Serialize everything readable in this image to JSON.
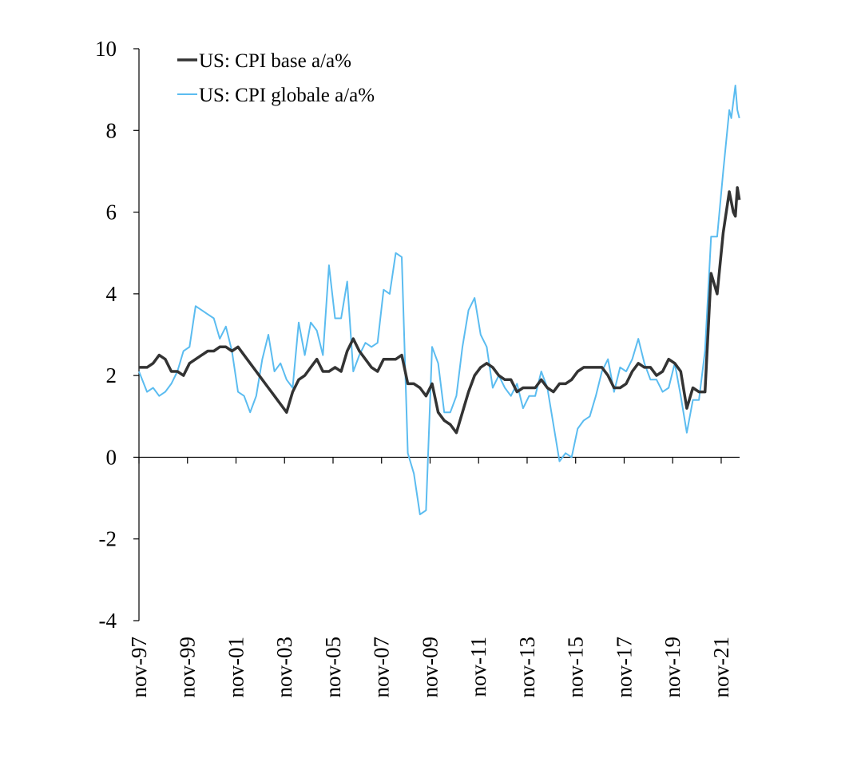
{
  "chart_data": {
    "type": "line",
    "title": "",
    "xlabel": "",
    "ylabel": "",
    "ylim": [
      -4,
      10
    ],
    "y_ticks": [
      "10",
      "8",
      "6",
      "4",
      "2",
      "0",
      "-2",
      "-4"
    ],
    "x_tick_labels": [
      "nov-97",
      "nov-99",
      "nov-01",
      "nov-03",
      "nov-05",
      "nov-07",
      "nov-09",
      "nov-11",
      "nov-13",
      "nov-15",
      "nov-17",
      "nov-19",
      "nov-21"
    ],
    "x_range": [
      "1997-11",
      "2022-07"
    ],
    "grid": false,
    "legend_position": "top-left",
    "series": [
      {
        "name": "US: CPI base a/a%",
        "color": "#333333",
        "points": [
          [
            "1997-11",
            2.2
          ],
          [
            "1998-03",
            2.2
          ],
          [
            "1998-06",
            2.3
          ],
          [
            "1998-09",
            2.5
          ],
          [
            "1998-12",
            2.4
          ],
          [
            "1999-03",
            2.1
          ],
          [
            "1999-06",
            2.1
          ],
          [
            "1999-09",
            2.0
          ],
          [
            "1999-12",
            2.3
          ],
          [
            "2000-03",
            2.4
          ],
          [
            "2000-06",
            2.5
          ],
          [
            "2000-09",
            2.6
          ],
          [
            "2000-12",
            2.6
          ],
          [
            "2001-03",
            2.7
          ],
          [
            "2001-06",
            2.7
          ],
          [
            "2001-09",
            2.6
          ],
          [
            "2001-12",
            2.7
          ],
          [
            "2002-03",
            2.5
          ],
          [
            "2002-06",
            2.3
          ],
          [
            "2002-09",
            2.1
          ],
          [
            "2002-12",
            1.9
          ],
          [
            "2003-03",
            1.7
          ],
          [
            "2003-06",
            1.5
          ],
          [
            "2003-09",
            1.3
          ],
          [
            "2003-12",
            1.1
          ],
          [
            "2004-03",
            1.6
          ],
          [
            "2004-06",
            1.9
          ],
          [
            "2004-09",
            2.0
          ],
          [
            "2004-12",
            2.2
          ],
          [
            "2005-03",
            2.4
          ],
          [
            "2005-06",
            2.1
          ],
          [
            "2005-09",
            2.1
          ],
          [
            "2005-12",
            2.2
          ],
          [
            "2006-03",
            2.1
          ],
          [
            "2006-06",
            2.6
          ],
          [
            "2006-09",
            2.9
          ],
          [
            "2006-12",
            2.6
          ],
          [
            "2007-03",
            2.4
          ],
          [
            "2007-06",
            2.2
          ],
          [
            "2007-09",
            2.1
          ],
          [
            "2007-12",
            2.4
          ],
          [
            "2008-03",
            2.4
          ],
          [
            "2008-06",
            2.4
          ],
          [
            "2008-09",
            2.5
          ],
          [
            "2008-12",
            1.8
          ],
          [
            "2009-03",
            1.8
          ],
          [
            "2009-06",
            1.7
          ],
          [
            "2009-09",
            1.5
          ],
          [
            "2009-12",
            1.8
          ],
          [
            "2010-03",
            1.1
          ],
          [
            "2010-06",
            0.9
          ],
          [
            "2010-09",
            0.8
          ],
          [
            "2010-12",
            0.6
          ],
          [
            "2011-03",
            1.1
          ],
          [
            "2011-06",
            1.6
          ],
          [
            "2011-09",
            2.0
          ],
          [
            "2011-12",
            2.2
          ],
          [
            "2012-03",
            2.3
          ],
          [
            "2012-06",
            2.2
          ],
          [
            "2012-09",
            2.0
          ],
          [
            "2012-12",
            1.9
          ],
          [
            "2013-03",
            1.9
          ],
          [
            "2013-06",
            1.6
          ],
          [
            "2013-09",
            1.7
          ],
          [
            "2013-12",
            1.7
          ],
          [
            "2014-03",
            1.7
          ],
          [
            "2014-06",
            1.9
          ],
          [
            "2014-09",
            1.7
          ],
          [
            "2014-12",
            1.6
          ],
          [
            "2015-03",
            1.8
          ],
          [
            "2015-06",
            1.8
          ],
          [
            "2015-09",
            1.9
          ],
          [
            "2015-12",
            2.1
          ],
          [
            "2016-03",
            2.2
          ],
          [
            "2016-06",
            2.2
          ],
          [
            "2016-09",
            2.2
          ],
          [
            "2016-12",
            2.2
          ],
          [
            "2017-03",
            2.0
          ],
          [
            "2017-06",
            1.7
          ],
          [
            "2017-09",
            1.7
          ],
          [
            "2017-12",
            1.8
          ],
          [
            "2018-03",
            2.1
          ],
          [
            "2018-06",
            2.3
          ],
          [
            "2018-09",
            2.2
          ],
          [
            "2018-12",
            2.2
          ],
          [
            "2019-03",
            2.0
          ],
          [
            "2019-06",
            2.1
          ],
          [
            "2019-09",
            2.4
          ],
          [
            "2019-12",
            2.3
          ],
          [
            "2020-03",
            2.1
          ],
          [
            "2020-06",
            1.2
          ],
          [
            "2020-09",
            1.7
          ],
          [
            "2020-12",
            1.6
          ],
          [
            "2021-03",
            1.6
          ],
          [
            "2021-06",
            4.5
          ],
          [
            "2021-09",
            4.0
          ],
          [
            "2021-12",
            5.5
          ],
          [
            "2022-03",
            6.5
          ],
          [
            "2022-05",
            6.0
          ],
          [
            "2022-06",
            5.9
          ],
          [
            "2022-07",
            6.6
          ],
          [
            "2022-08",
            6.3
          ]
        ]
      },
      {
        "name": "US: CPI globale a/a%",
        "color": "#5bbcf0",
        "points": [
          [
            "1997-11",
            2.1
          ],
          [
            "1998-03",
            1.6
          ],
          [
            "1998-06",
            1.7
          ],
          [
            "1998-09",
            1.5
          ],
          [
            "1998-12",
            1.6
          ],
          [
            "1999-03",
            1.8
          ],
          [
            "1999-06",
            2.1
          ],
          [
            "1999-09",
            2.6
          ],
          [
            "1999-12",
            2.7
          ],
          [
            "2000-03",
            3.7
          ],
          [
            "2000-06",
            3.6
          ],
          [
            "2000-09",
            3.5
          ],
          [
            "2000-12",
            3.4
          ],
          [
            "2001-03",
            2.9
          ],
          [
            "2001-06",
            3.2
          ],
          [
            "2001-09",
            2.6
          ],
          [
            "2001-12",
            1.6
          ],
          [
            "2002-03",
            1.5
          ],
          [
            "2002-06",
            1.1
          ],
          [
            "2002-09",
            1.5
          ],
          [
            "2002-12",
            2.4
          ],
          [
            "2003-03",
            3.0
          ],
          [
            "2003-06",
            2.1
          ],
          [
            "2003-09",
            2.3
          ],
          [
            "2003-12",
            1.9
          ],
          [
            "2004-03",
            1.7
          ],
          [
            "2004-06",
            3.3
          ],
          [
            "2004-09",
            2.5
          ],
          [
            "2004-12",
            3.3
          ],
          [
            "2005-03",
            3.1
          ],
          [
            "2005-06",
            2.5
          ],
          [
            "2005-09",
            4.7
          ],
          [
            "2005-12",
            3.4
          ],
          [
            "2006-03",
            3.4
          ],
          [
            "2006-06",
            4.3
          ],
          [
            "2006-09",
            2.1
          ],
          [
            "2006-12",
            2.5
          ],
          [
            "2007-03",
            2.8
          ],
          [
            "2007-06",
            2.7
          ],
          [
            "2007-09",
            2.8
          ],
          [
            "2007-12",
            4.1
          ],
          [
            "2008-03",
            4.0
          ],
          [
            "2008-06",
            5.0
          ],
          [
            "2008-09",
            4.9
          ],
          [
            "2008-12",
            0.1
          ],
          [
            "2009-03",
            -0.4
          ],
          [
            "2009-06",
            -1.4
          ],
          [
            "2009-09",
            -1.3
          ],
          [
            "2009-12",
            2.7
          ],
          [
            "2010-03",
            2.3
          ],
          [
            "2010-06",
            1.1
          ],
          [
            "2010-09",
            1.1
          ],
          [
            "2010-12",
            1.5
          ],
          [
            "2011-03",
            2.7
          ],
          [
            "2011-06",
            3.6
          ],
          [
            "2011-09",
            3.9
          ],
          [
            "2011-12",
            3.0
          ],
          [
            "2012-03",
            2.7
          ],
          [
            "2012-06",
            1.7
          ],
          [
            "2012-09",
            2.0
          ],
          [
            "2012-12",
            1.7
          ],
          [
            "2013-03",
            1.5
          ],
          [
            "2013-06",
            1.8
          ],
          [
            "2013-09",
            1.2
          ],
          [
            "2013-12",
            1.5
          ],
          [
            "2014-03",
            1.5
          ],
          [
            "2014-06",
            2.1
          ],
          [
            "2014-09",
            1.7
          ],
          [
            "2014-12",
            0.8
          ],
          [
            "2015-03",
            -0.1
          ],
          [
            "2015-06",
            0.1
          ],
          [
            "2015-09",
            0.0
          ],
          [
            "2015-12",
            0.7
          ],
          [
            "2016-03",
            0.9
          ],
          [
            "2016-06",
            1.0
          ],
          [
            "2016-09",
            1.5
          ],
          [
            "2016-12",
            2.1
          ],
          [
            "2017-03",
            2.4
          ],
          [
            "2017-06",
            1.6
          ],
          [
            "2017-09",
            2.2
          ],
          [
            "2017-12",
            2.1
          ],
          [
            "2018-03",
            2.4
          ],
          [
            "2018-06",
            2.9
          ],
          [
            "2018-09",
            2.3
          ],
          [
            "2018-12",
            1.9
          ],
          [
            "2019-03",
            1.9
          ],
          [
            "2019-06",
            1.6
          ],
          [
            "2019-09",
            1.7
          ],
          [
            "2019-12",
            2.3
          ],
          [
            "2020-03",
            1.5
          ],
          [
            "2020-06",
            0.6
          ],
          [
            "2020-09",
            1.4
          ],
          [
            "2020-12",
            1.4
          ],
          [
            "2021-03",
            2.6
          ],
          [
            "2021-06",
            5.4
          ],
          [
            "2021-09",
            5.4
          ],
          [
            "2021-12",
            7.0
          ],
          [
            "2022-03",
            8.5
          ],
          [
            "2022-04",
            8.3
          ],
          [
            "2022-06",
            9.1
          ],
          [
            "2022-07",
            8.5
          ],
          [
            "2022-08",
            8.3
          ]
        ]
      }
    ]
  }
}
